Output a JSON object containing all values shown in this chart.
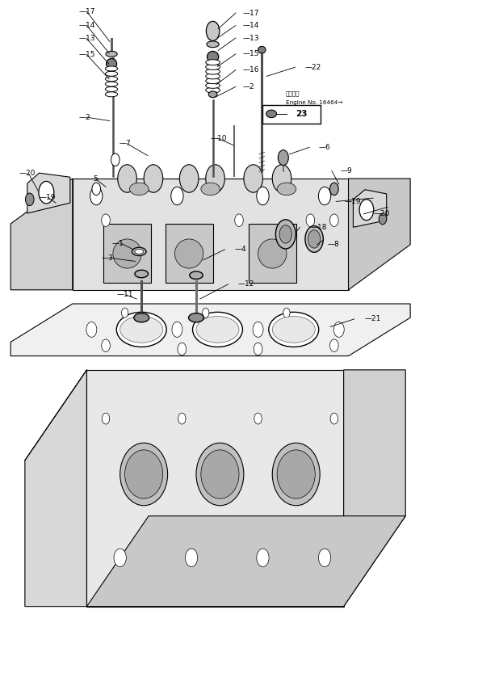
{
  "title": "",
  "bg_color": "#ffffff",
  "fig_width": 5.92,
  "fig_height": 8.64,
  "dpi": 100,
  "annotation_box": {
    "text_line1": "適用号機",
    "text_line2": "Engine No. 16464→",
    "box_label": "23"
  }
}
